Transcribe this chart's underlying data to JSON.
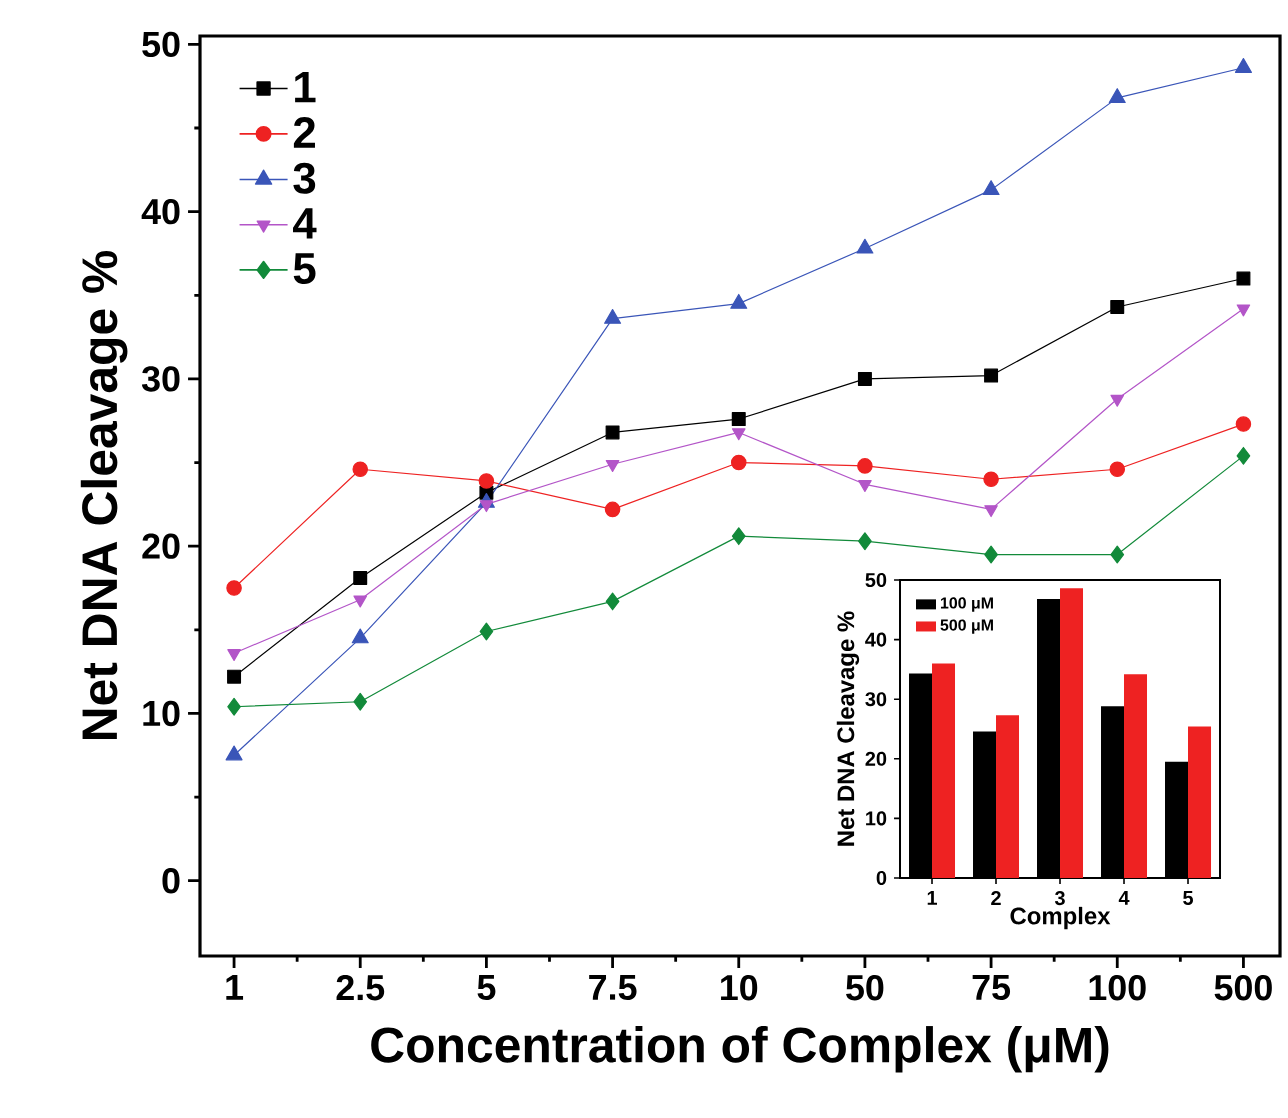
{
  "chart_data": [
    {
      "type": "line",
      "xlabel": "Concentration of Complex (μM)",
      "ylabel": "Net DNA Cleavage %",
      "categories": [
        "1",
        "2.5",
        "5",
        "7.5",
        "10",
        "50",
        "75",
        "100",
        "500"
      ],
      "ylim": [
        -4.5,
        50.5
      ],
      "yticks": [
        0,
        10,
        20,
        30,
        40,
        50
      ],
      "legend": "top left",
      "series": [
        {
          "name": "1",
          "color": "#000000",
          "marker": "square",
          "values": [
            12.2,
            18.1,
            23.2,
            26.8,
            27.6,
            30.0,
            30.2,
            34.3,
            36.0
          ]
        },
        {
          "name": "2",
          "color": "#ee2222",
          "marker": "circle",
          "values": [
            17.5,
            24.6,
            23.9,
            22.2,
            25.0,
            24.8,
            24.0,
            24.6,
            27.3
          ]
        },
        {
          "name": "3",
          "color": "#3a55b8",
          "marker": "triangle",
          "values": [
            7.5,
            14.5,
            22.6,
            33.6,
            34.5,
            37.8,
            41.3,
            46.8,
            48.6
          ]
        },
        {
          "name": "4",
          "color": "#b355c8",
          "marker": "triangle-down",
          "values": [
            13.6,
            16.8,
            22.5,
            24.9,
            26.8,
            23.7,
            22.2,
            28.8,
            34.2
          ]
        },
        {
          "name": "5",
          "color": "#128a3a",
          "marker": "diamond",
          "values": [
            10.4,
            10.7,
            14.9,
            16.7,
            20.6,
            20.3,
            19.5,
            19.5,
            25.4
          ]
        }
      ]
    },
    {
      "type": "bar",
      "xlabel": "Complex",
      "ylabel": "Net DNA Cleavage %",
      "categories": [
        "1",
        "2",
        "3",
        "4",
        "5"
      ],
      "ylim": [
        0,
        50
      ],
      "yticks": [
        0,
        10,
        20,
        30,
        40,
        50
      ],
      "legend": "top left",
      "series": [
        {
          "name": "100 μM",
          "color": "#000000",
          "values": [
            34.3,
            24.6,
            46.8,
            28.8,
            19.5
          ]
        },
        {
          "name": "500 μM",
          "color": "#ee2222",
          "values": [
            36.0,
            27.3,
            48.6,
            34.2,
            25.4
          ]
        }
      ]
    }
  ]
}
